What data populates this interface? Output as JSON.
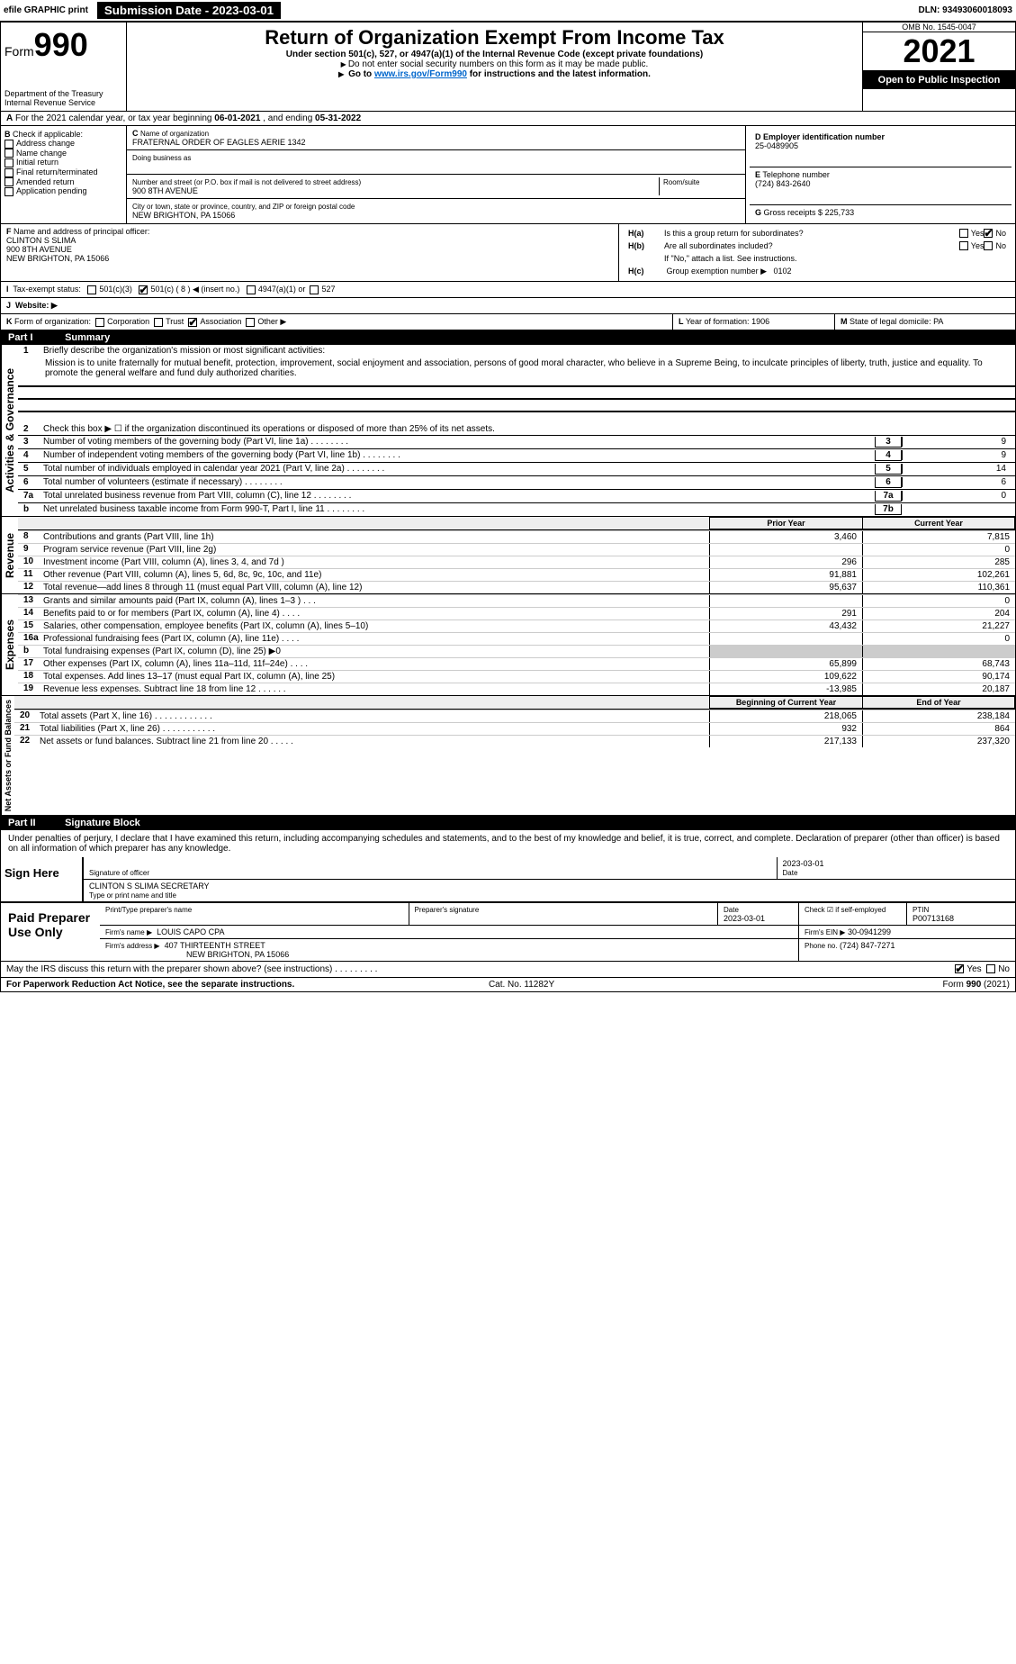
{
  "header": {
    "efile_label": "efile GRAPHIC print",
    "submission_label": "Submission Date - 2023-03-01",
    "dln_label": "DLN: 93493060018093"
  },
  "form_id": {
    "form_word": "Form",
    "form_num": "990",
    "title": "Return of Organization Exempt From Income Tax",
    "subtitle": "Under section 501(c), 527, or 4947(a)(1) of the Internal Revenue Code (except private foundations)",
    "note1": "Do not enter social security numbers on this form as it may be made public.",
    "note2_pre": "Go to ",
    "note2_link": "www.irs.gov/Form990",
    "note2_post": " for instructions and the latest information.",
    "dept": "Department of the Treasury",
    "irs": "Internal Revenue Service",
    "omb": "OMB No. 1545-0047",
    "year": "2021",
    "open": "Open to Public Inspection"
  },
  "period": {
    "text_a": "For the 2021 calendar year, or tax year beginning ",
    "begin": "06-01-2021",
    "text_b": "   , and ending ",
    "end": "05-31-2022"
  },
  "boxB": {
    "label": "Check if applicable:",
    "items": [
      "Address change",
      "Name change",
      "Initial return",
      "Final return/terminated",
      "Amended return",
      "Application pending"
    ]
  },
  "boxC": {
    "name_label": "Name of organization",
    "name": "FRATERNAL ORDER OF EAGLES AERIE 1342",
    "dba_label": "Doing business as",
    "dba": "",
    "street_label": "Number and street (or P.O. box if mail is not delivered to street address)",
    "room_label": "Room/suite",
    "street": "900 8TH AVENUE",
    "city_label": "City or town, state or province, country, and ZIP or foreign postal code",
    "city": "NEW BRIGHTON, PA  15066"
  },
  "boxD": {
    "label": "Employer identification number",
    "value": "25-0489905"
  },
  "boxE": {
    "label": "Telephone number",
    "value": "(724) 843-2640"
  },
  "boxG": {
    "label": "Gross receipts $",
    "value": "225,733"
  },
  "boxF": {
    "label": "Name and address of principal officer:",
    "name": "CLINTON S SLIMA",
    "addr1": "900 8TH AVENUE",
    "addr2": "NEW BRIGHTON, PA  15066"
  },
  "boxH": {
    "a_label": "Is this a group return for subordinates?",
    "a_yes": "Yes",
    "a_no": "No",
    "b_label": "Are all subordinates included?",
    "b_note": "If \"No,\" attach a list. See instructions.",
    "c_label": "Group exemption number ▶",
    "c_value": "0102"
  },
  "boxI": {
    "label": "Tax-exempt status:",
    "opt1": "501(c)(3)",
    "opt2": "501(c) ( 8 ) ◀ (insert no.)",
    "opt3": "4947(a)(1) or",
    "opt4": "527"
  },
  "boxJ": {
    "label": "Website: ▶",
    "value": ""
  },
  "boxK": {
    "label": "Form of organization:",
    "opts": [
      "Corporation",
      "Trust",
      "Association",
      "Other ▶"
    ]
  },
  "boxL": {
    "label": "Year of formation:",
    "value": "1906"
  },
  "boxM": {
    "label": "State of legal domicile:",
    "value": "PA"
  },
  "part1": {
    "bar_pt": "Part I",
    "bar_title": "Summary",
    "mission_label": "Briefly describe the organization's mission or most significant activities:",
    "mission": "Mission is to unite fraternally for mutual benefit, protection, improvement, social enjoyment and association, persons of good moral character, who believe in a Supreme Being, to inculcate principles of liberty, truth, justice and equality. To promote the general welfare and fund duly authorized charities.",
    "line2": "Check this box ▶ ☐  if the organization discontinued its operations or disposed of more than 25% of its net assets.",
    "rows_gov": [
      {
        "n": "3",
        "t": "Number of voting members of the governing body (Part VI, line 1a)",
        "box": "3",
        "v": "9"
      },
      {
        "n": "4",
        "t": "Number of independent voting members of the governing body (Part VI, line 1b)",
        "box": "4",
        "v": "9"
      },
      {
        "n": "5",
        "t": "Total number of individuals employed in calendar year 2021 (Part V, line 2a)",
        "box": "5",
        "v": "14"
      },
      {
        "n": "6",
        "t": "Total number of volunteers (estimate if necessary)",
        "box": "6",
        "v": "6"
      },
      {
        "n": "7a",
        "t": "Total unrelated business revenue from Part VIII, column (C), line 12",
        "box": "7a",
        "v": "0"
      },
      {
        "n": "b",
        "t": "Net unrelated business taxable income from Form 990-T, Part I, line 11",
        "box": "7b",
        "v": ""
      }
    ],
    "col_head_prior": "Prior Year",
    "col_head_current": "Current Year",
    "revenue": [
      {
        "n": "8",
        "t": "Contributions and grants (Part VIII, line 1h)",
        "p": "3,460",
        "c": "7,815"
      },
      {
        "n": "9",
        "t": "Program service revenue (Part VIII, line 2g)",
        "p": "",
        "c": "0"
      },
      {
        "n": "10",
        "t": "Investment income (Part VIII, column (A), lines 3, 4, and 7d )",
        "p": "296",
        "c": "285"
      },
      {
        "n": "11",
        "t": "Other revenue (Part VIII, column (A), lines 5, 6d, 8c, 9c, 10c, and 11e)",
        "p": "91,881",
        "c": "102,261"
      },
      {
        "n": "12",
        "t": "Total revenue—add lines 8 through 11 (must equal Part VIII, column (A), line 12)",
        "p": "95,637",
        "c": "110,361"
      }
    ],
    "expenses": [
      {
        "n": "13",
        "t": "Grants and similar amounts paid (Part IX, column (A), lines 1–3 )  .   .   .",
        "p": "",
        "c": "0"
      },
      {
        "n": "14",
        "t": "Benefits paid to or for members (Part IX, column (A), line 4)  .   .   .   .",
        "p": "291",
        "c": "204"
      },
      {
        "n": "15",
        "t": "Salaries, other compensation, employee benefits (Part IX, column (A), lines 5–10)",
        "p": "43,432",
        "c": "21,227"
      },
      {
        "n": "16a",
        "t": "Professional fundraising fees (Part IX, column (A), line 11e)  .   .   .   .",
        "p": "",
        "c": "0"
      },
      {
        "n": "b",
        "t": "Total fundraising expenses (Part IX, column (D), line 25) ▶0",
        "p": "shaded",
        "c": "shaded"
      },
      {
        "n": "17",
        "t": "Other expenses (Part IX, column (A), lines 11a–11d, 11f–24e)  .   .   .   .",
        "p": "65,899",
        "c": "68,743"
      },
      {
        "n": "18",
        "t": "Total expenses. Add lines 13–17 (must equal Part IX, column (A), line 25)",
        "p": "109,622",
        "c": "90,174"
      },
      {
        "n": "19",
        "t": "Revenue less expenses. Subtract line 18 from line 12  .   .   .   .   .   .",
        "p": "-13,985",
        "c": "20,187"
      }
    ],
    "col_head_begin": "Beginning of Current Year",
    "col_head_end": "End of Year",
    "net": [
      {
        "n": "20",
        "t": "Total assets (Part X, line 16)  .   .   .   .   .   .   .   .   .   .   .   .",
        "p": "218,065",
        "c": "238,184"
      },
      {
        "n": "21",
        "t": "Total liabilities (Part X, line 26)  .   .   .   .   .   .   .   .   .   .   .",
        "p": "932",
        "c": "864"
      },
      {
        "n": "22",
        "t": "Net assets or fund balances. Subtract line 21 from line 20  .   .   .   .   .",
        "p": "217,133",
        "c": "237,320"
      }
    ],
    "vlabels": {
      "gov": "Activities & Governance",
      "rev": "Revenue",
      "exp": "Expenses",
      "net": "Net Assets or Fund Balances"
    }
  },
  "part2": {
    "bar_pt": "Part II",
    "bar_title": "Signature Block",
    "decl": "Under penalties of perjury, I declare that I have examined this return, including accompanying schedules and statements, and to the best of my knowledge and belief, it is true, correct, and complete. Declaration of preparer (other than officer) is based on all information of which preparer has any knowledge.",
    "sign_here": "Sign Here",
    "sig_officer": "Signature of officer",
    "sig_date": "2023-03-01",
    "date_lbl": "Date",
    "name_title": "CLINTON S SLIMA  SECRETARY",
    "name_lbl": "Type or print name and title",
    "paid": "Paid Preparer Use Only",
    "prep_name_lbl": "Print/Type preparer's name",
    "prep_name": "",
    "prep_sig_lbl": "Preparer's signature",
    "prep_date_lbl": "Date",
    "prep_date": "2023-03-01",
    "self_lbl": "Check ☑ if self-employed",
    "ptin_lbl": "PTIN",
    "ptin": "P00713168",
    "firm_name_lbl": "Firm's name    ▶",
    "firm_name": "LOUIS CAPO CPA",
    "firm_ein_lbl": "Firm's EIN ▶",
    "firm_ein": "30-0941299",
    "firm_addr_lbl": "Firm's address ▶",
    "firm_addr1": "407 THIRTEENTH STREET",
    "firm_addr2": "NEW BRIGHTON, PA  15066",
    "phone_lbl": "Phone no.",
    "phone": "(724) 847-7271",
    "may_irs": "May the IRS discuss this return with the preparer shown above? (see instructions)  .   .   .   .   .   .   .   .   .",
    "yes": "Yes",
    "no": "No"
  },
  "footer": {
    "left": "For Paperwork Reduction Act Notice, see the separate instructions.",
    "mid": "Cat. No. 11282Y",
    "right": "Form 990 (2021)"
  },
  "letters": {
    "A": "A",
    "B": "B",
    "C": "C",
    "D": "D",
    "E": "E",
    "F": "F",
    "G": "G",
    "H_a": "H(a)",
    "H_b": "H(b)",
    "H_c": "H(c)",
    "I": "I",
    "J": "J",
    "K": "K",
    "L": "L",
    "M": "M"
  }
}
